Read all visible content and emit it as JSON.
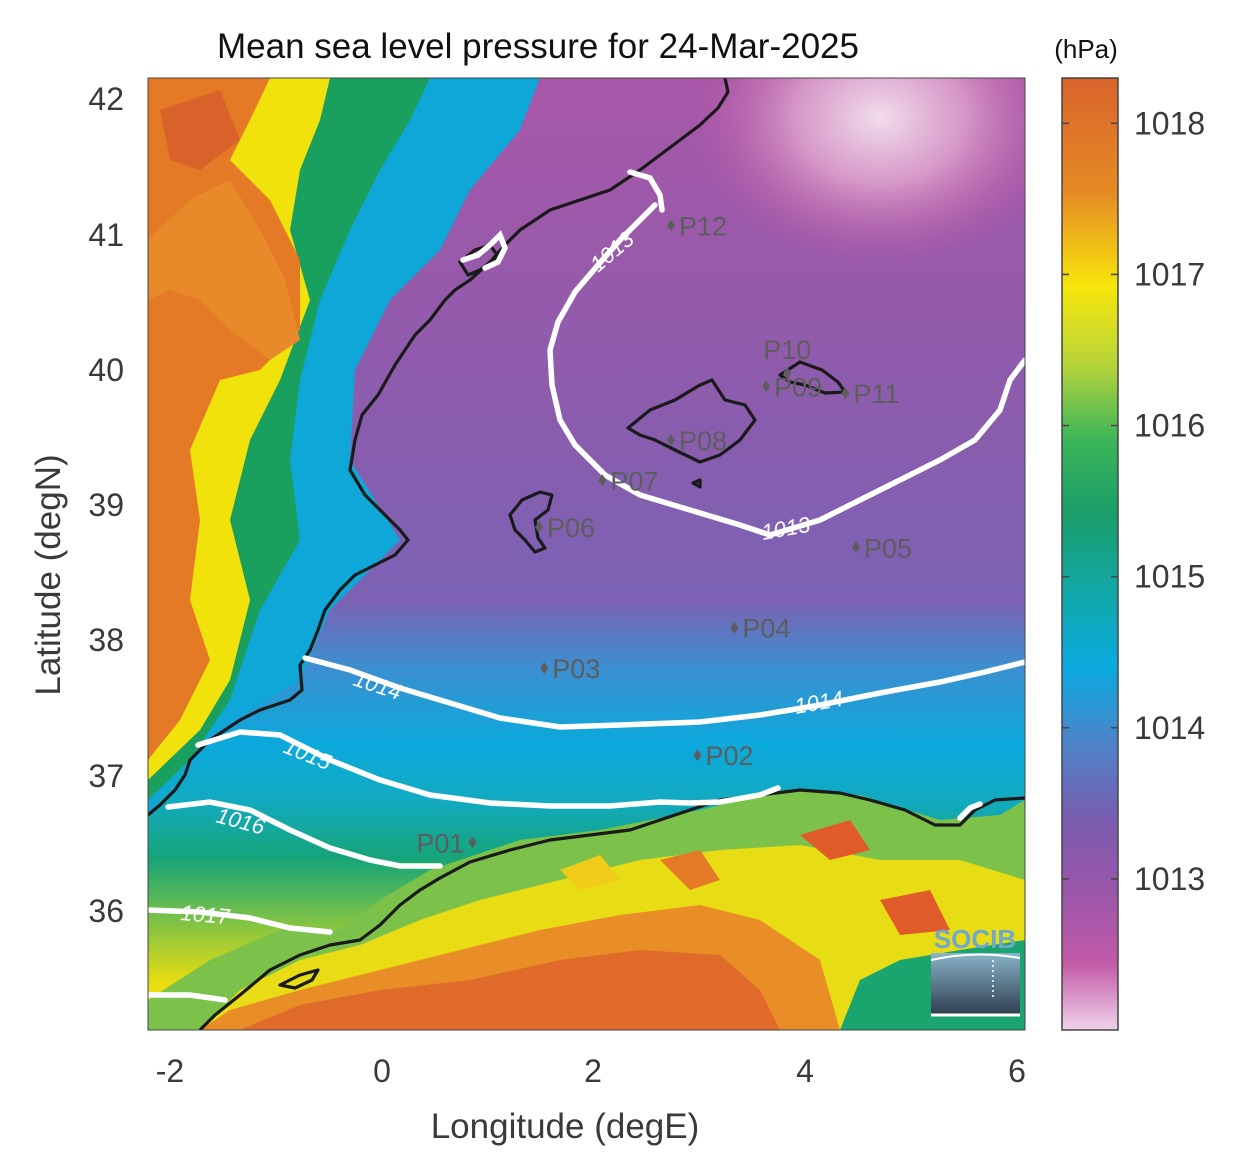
{
  "title": "Mean sea level pressure for 24-Mar-2025",
  "xlabel": "Longitude (degE)",
  "ylabel": "Latitude (degN)",
  "colorbar": {
    "unit": "(hPa)",
    "ticks": [
      "1018",
      "1017",
      "1016",
      "1015",
      "1014",
      "1013"
    ],
    "range": [
      1012.0,
      1018.3
    ]
  },
  "x_ticks": [
    "-2",
    "0",
    "2",
    "4",
    "6"
  ],
  "y_ticks": [
    "42",
    "41",
    "40",
    "39",
    "38",
    "37",
    "36"
  ],
  "extent": {
    "lon": [
      -2.2,
      6.1
    ],
    "lat": [
      35.1,
      42.2
    ]
  },
  "contours": [
    {
      "value": "1013",
      "labels": [
        "1013",
        "1013"
      ]
    },
    {
      "value": "1014",
      "labels": [
        "1014",
        "1014"
      ]
    },
    {
      "value": "1015",
      "labels": [
        "1015"
      ]
    },
    {
      "value": "1016",
      "labels": [
        "1016"
      ]
    },
    {
      "value": "1017",
      "labels": [
        "1017"
      ]
    }
  ],
  "stations": [
    {
      "id": "P01",
      "lon": 0.87,
      "lat": 36.5
    },
    {
      "id": "P02",
      "lon": 3.0,
      "lat": 37.15
    },
    {
      "id": "P03",
      "lon": 1.55,
      "lat": 37.8
    },
    {
      "id": "P04",
      "lon": 3.35,
      "lat": 38.1
    },
    {
      "id": "P05",
      "lon": 4.5,
      "lat": 38.7
    },
    {
      "id": "P06",
      "lon": 1.5,
      "lat": 38.85
    },
    {
      "id": "P07",
      "lon": 2.1,
      "lat": 39.2
    },
    {
      "id": "P08",
      "lon": 2.75,
      "lat": 39.5
    },
    {
      "id": "P09",
      "lon": 3.65,
      "lat": 39.9
    },
    {
      "id": "P10",
      "lon": 3.85,
      "lat": 40.0
    },
    {
      "id": "P11",
      "lon": 4.4,
      "lat": 39.85
    },
    {
      "id": "P12",
      "lon": 2.75,
      "lat": 41.1
    }
  ],
  "logo": "SOCIB",
  "colors": {
    "orange": "#e07326",
    "yellow": "#f4e409",
    "green": "#1aa459",
    "cyan": "#07a7c9",
    "purple": "#875cae",
    "magenta": "#be57a4",
    "pink": "#eac8e2",
    "coast": "#1a1a1a",
    "contour": "#ffffff"
  }
}
